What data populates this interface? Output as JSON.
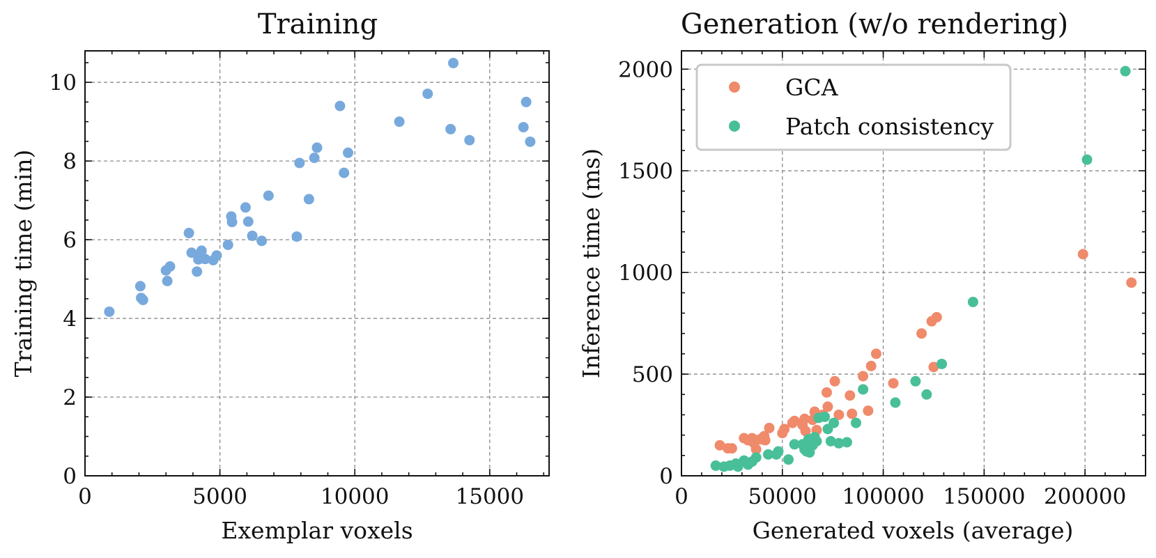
{
  "chart_data": [
    {
      "type": "scatter",
      "title": "Training",
      "xlabel": "Exemplar voxels",
      "ylabel": "Training time (min)",
      "xlim": [
        0,
        17200
      ],
      "ylim": [
        0,
        10.8
      ],
      "xticks": [
        0,
        5000,
        10000,
        15000
      ],
      "yticks": [
        0,
        2,
        4,
        6,
        8,
        10
      ],
      "grid": true,
      "series": [
        {
          "name": "Training",
          "color": "#78a9dd",
          "points": [
            [
              900,
              4.17
            ],
            [
              2050,
              4.82
            ],
            [
              2080,
              4.52
            ],
            [
              2150,
              4.47
            ],
            [
              3000,
              5.22
            ],
            [
              3050,
              4.95
            ],
            [
              3150,
              5.32
            ],
            [
              3850,
              6.17
            ],
            [
              3950,
              5.67
            ],
            [
              4150,
              5.19
            ],
            [
              4200,
              5.5
            ],
            [
              4250,
              5.62
            ],
            [
              4320,
              5.72
            ],
            [
              4450,
              5.51
            ],
            [
              4750,
              5.48
            ],
            [
              4880,
              5.6
            ],
            [
              5300,
              5.87
            ],
            [
              5420,
              6.59
            ],
            [
              5450,
              6.45
            ],
            [
              5950,
              6.82
            ],
            [
              6050,
              6.46
            ],
            [
              6200,
              6.1
            ],
            [
              6550,
              5.97
            ],
            [
              6800,
              7.12
            ],
            [
              7850,
              6.08
            ],
            [
              7950,
              7.95
            ],
            [
              8300,
              7.03
            ],
            [
              8500,
              8.08
            ],
            [
              8600,
              8.34
            ],
            [
              9450,
              9.4
            ],
            [
              9600,
              7.7
            ],
            [
              9750,
              8.21
            ],
            [
              11650,
              9.0
            ],
            [
              12700,
              9.71
            ],
            [
              13550,
              8.81
            ],
            [
              13650,
              10.49
            ],
            [
              14250,
              8.53
            ],
            [
              16250,
              8.86
            ],
            [
              16350,
              9.5
            ],
            [
              16500,
              8.49
            ]
          ]
        }
      ]
    },
    {
      "type": "scatter",
      "title": "Generation (w/o rendering)",
      "xlabel": "Generated voxels (average)",
      "ylabel": "Inference time (ms)",
      "xlim": [
        0,
        230000
      ],
      "ylim": [
        0,
        2090
      ],
      "xticks": [
        0,
        50000,
        100000,
        150000,
        200000
      ],
      "yticks": [
        0,
        500,
        1000,
        1500,
        2000
      ],
      "grid": true,
      "legend_position": "top-left",
      "series": [
        {
          "name": "GCA",
          "color": "#ef8a6b",
          "points": [
            [
              19000,
              150
            ],
            [
              23000,
              135
            ],
            [
              25000,
              135
            ],
            [
              31000,
              185
            ],
            [
              33000,
              175
            ],
            [
              35000,
              185
            ],
            [
              36000,
              160
            ],
            [
              37000,
              130
            ],
            [
              39000,
              180
            ],
            [
              41000,
              195
            ],
            [
              41500,
              175
            ],
            [
              43500,
              235
            ],
            [
              50000,
              210
            ],
            [
              51000,
              230
            ],
            [
              55000,
              260
            ],
            [
              56000,
              270
            ],
            [
              60000,
              250
            ],
            [
              61000,
              280
            ],
            [
              61500,
              220
            ],
            [
              65000,
              275
            ],
            [
              66000,
              315
            ],
            [
              67000,
              225
            ],
            [
              70000,
              300
            ],
            [
              72000,
              410
            ],
            [
              72500,
              340
            ],
            [
              76000,
              465
            ],
            [
              78000,
              300
            ],
            [
              83500,
              395
            ],
            [
              84500,
              305
            ],
            [
              90000,
              490
            ],
            [
              92500,
              320
            ],
            [
              94000,
              540
            ],
            [
              96500,
              600
            ],
            [
              105000,
              455
            ],
            [
              119000,
              700
            ],
            [
              124000,
              760
            ],
            [
              125000,
              535
            ],
            [
              126500,
              780
            ],
            [
              199000,
              1090
            ],
            [
              223000,
              950
            ]
          ]
        },
        {
          "name": "Patch consistency",
          "color": "#48bf98",
          "points": [
            [
              17000,
              50
            ],
            [
              21000,
              45
            ],
            [
              24000,
              50
            ],
            [
              27000,
              60
            ],
            [
              28000,
              45
            ],
            [
              31000,
              75
            ],
            [
              33000,
              55
            ],
            [
              35000,
              70
            ],
            [
              37000,
              90
            ],
            [
              43000,
              105
            ],
            [
              47000,
              105
            ],
            [
              48000,
              120
            ],
            [
              53000,
              80
            ],
            [
              56000,
              155
            ],
            [
              60000,
              155
            ],
            [
              61000,
              130
            ],
            [
              62000,
              120
            ],
            [
              63000,
              180
            ],
            [
              63500,
              115
            ],
            [
              65000,
              150
            ],
            [
              66000,
              190
            ],
            [
              67000,
              170
            ],
            [
              68000,
              285
            ],
            [
              71000,
              290
            ],
            [
              72500,
              230
            ],
            [
              74000,
              170
            ],
            [
              75500,
              260
            ],
            [
              78000,
              160
            ],
            [
              82000,
              165
            ],
            [
              86500,
              260
            ],
            [
              90000,
              425
            ],
            [
              106000,
              360
            ],
            [
              116000,
              465
            ],
            [
              121500,
              400
            ],
            [
              129000,
              550
            ],
            [
              144500,
              855
            ],
            [
              201000,
              1555
            ],
            [
              220000,
              1990
            ]
          ]
        }
      ]
    }
  ]
}
